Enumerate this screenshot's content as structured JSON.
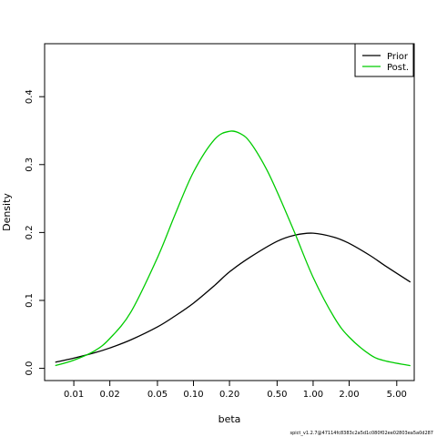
{
  "chart_data": {
    "type": "line",
    "title": "",
    "xlabel": "beta",
    "ylabel": "Density",
    "xscale": "log",
    "xlim": [
      0.0057,
      7.0
    ],
    "ylim": [
      -0.018,
      0.478
    ],
    "xticks": [
      0.01,
      0.02,
      0.05,
      0.1,
      0.2,
      0.5,
      1.0,
      2.0,
      5.0
    ],
    "xtick_labels": [
      "0.01",
      "0.02",
      "0.05",
      "0.10",
      "0.20",
      "0.50",
      "1.00",
      "2.00",
      "5.00"
    ],
    "yticks": [
      0.0,
      0.1,
      0.2,
      0.3,
      0.4
    ],
    "ytick_labels": [
      "0.0",
      "0.1",
      "0.2",
      "0.3",
      "0.4"
    ],
    "grid": false,
    "legend": {
      "position": "top-right",
      "entries": [
        "Prior",
        "Post."
      ]
    },
    "series": [
      {
        "name": "Prior",
        "color": "#000000",
        "x": [
          0.007,
          0.01,
          0.015,
          0.02,
          0.03,
          0.05,
          0.07,
          0.1,
          0.15,
          0.2,
          0.3,
          0.5,
          0.7,
          1.0,
          1.5,
          2.0,
          3.0,
          4.0,
          6.5
        ],
        "y": [
          0.009,
          0.015,
          0.023,
          0.03,
          0.042,
          0.061,
          0.077,
          0.096,
          0.122,
          0.142,
          0.164,
          0.187,
          0.196,
          0.199,
          0.193,
          0.184,
          0.166,
          0.151,
          0.127
        ]
      },
      {
        "name": "Post.",
        "color": "#00cc00",
        "x": [
          0.007,
          0.01,
          0.015,
          0.02,
          0.03,
          0.05,
          0.07,
          0.1,
          0.15,
          0.2,
          0.25,
          0.3,
          0.4,
          0.5,
          0.7,
          1.0,
          1.5,
          2.0,
          3.0,
          4.0,
          6.5
        ],
        "y": [
          0.004,
          0.012,
          0.026,
          0.044,
          0.083,
          0.163,
          0.226,
          0.289,
          0.337,
          0.349,
          0.345,
          0.332,
          0.296,
          0.26,
          0.2,
          0.134,
          0.075,
          0.046,
          0.02,
          0.011,
          0.004
        ]
      }
    ]
  },
  "footer": {
    "text": "spict_v1.2.7@47114fc8383c2a5d1c080f02ee02803ea5a0d287"
  }
}
